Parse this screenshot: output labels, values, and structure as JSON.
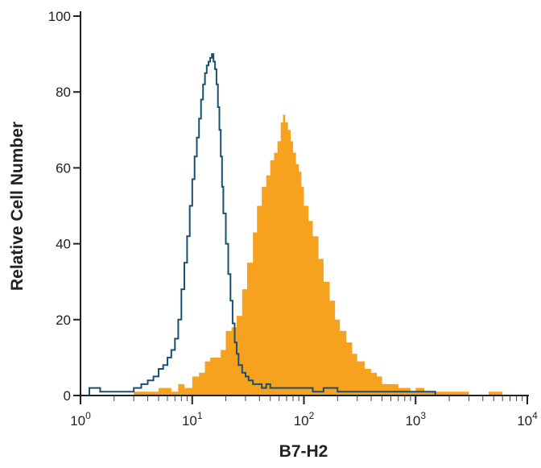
{
  "chart_data": {
    "type": "histogram",
    "title": "",
    "xlabel": "B7-H2",
    "ylabel": "Relative Cell Number",
    "x_scale": "log",
    "xlim": [
      1,
      10000
    ],
    "ylim": [
      0,
      100
    ],
    "x_ticks": [
      {
        "value": 1,
        "base": "10",
        "exp": "0"
      },
      {
        "value": 10,
        "base": "10",
        "exp": "1"
      },
      {
        "value": 100,
        "base": "10",
        "exp": "2"
      },
      {
        "value": 1000,
        "base": "10",
        "exp": "3"
      },
      {
        "value": 10000,
        "base": "10",
        "exp": "4"
      }
    ],
    "y_ticks": [
      0,
      20,
      40,
      60,
      80,
      100
    ],
    "grid": false,
    "legend": "none",
    "series": [
      {
        "style": "filled",
        "color": "#f7a21e",
        "x": [
          1.0,
          2.0,
          3.0,
          3.6,
          4.3,
          5.0,
          5.8,
          6.5,
          7.5,
          8.5,
          10,
          11.5,
          13,
          14.5,
          16,
          18,
          20,
          22.5,
          25,
          28,
          31,
          35,
          38,
          42,
          46,
          50,
          54,
          58,
          62,
          65,
          68,
          72,
          76,
          80,
          85,
          90,
          95,
          100,
          110,
          120,
          135,
          150,
          170,
          190,
          210,
          240,
          270,
          300,
          350,
          400,
          450,
          500,
          600,
          700,
          800,
          900,
          1000,
          1200,
          1500,
          2000,
          3000,
          4500,
          6000,
          10000
        ],
        "y": [
          0,
          0,
          1,
          1,
          1,
          2,
          2,
          1,
          3,
          2,
          5,
          6,
          9,
          10,
          10,
          12,
          17,
          18,
          21,
          28,
          35,
          43,
          50,
          55,
          58,
          62,
          64,
          67,
          72,
          74,
          72,
          70,
          67,
          64,
          61,
          59,
          55,
          50,
          46,
          42,
          36,
          30,
          25,
          20,
          17,
          14,
          11,
          9,
          7,
          6,
          5,
          3,
          3,
          2,
          2,
          1,
          2,
          1,
          1,
          1,
          0,
          1,
          0,
          0
        ]
      },
      {
        "style": "outline",
        "color": "#1b4f72",
        "x": [
          1.0,
          1.2,
          1.5,
          2.0,
          2.5,
          3.0,
          3.5,
          4.0,
          4.5,
          5.0,
          5.5,
          6.0,
          6.5,
          7.0,
          7.5,
          8.0,
          8.5,
          9.0,
          9.5,
          10.0,
          10.5,
          11.0,
          11.5,
          12.0,
          12.5,
          13.0,
          13.5,
          14.0,
          14.5,
          15.0,
          15.5,
          16.0,
          16.5,
          17.0,
          17.5,
          18.0,
          18.5,
          19.0,
          20.0,
          21.0,
          22.0,
          23.0,
          24.0,
          25.0,
          26.0,
          28.0,
          30.0,
          32.0,
          35.0,
          38.0,
          42.0,
          46.0,
          50.0,
          60.0,
          70.0,
          80.0,
          100,
          120,
          150,
          200,
          300,
          400,
          600,
          1000,
          1500,
          2500,
          5000,
          10000
        ],
        "y": [
          0,
          2,
          1,
          1,
          1,
          2,
          3,
          4,
          5,
          7,
          8,
          10,
          12,
          15,
          20,
          28,
          35,
          42,
          50,
          57,
          63,
          68,
          73,
          78,
          82,
          85,
          87,
          88,
          89,
          90,
          88,
          86,
          82,
          76,
          70,
          63,
          55,
          48,
          40,
          32,
          25,
          19,
          14,
          11,
          8,
          6,
          5,
          4,
          3,
          3,
          2,
          3,
          2,
          2,
          2,
          2,
          2,
          1,
          2,
          1,
          1,
          1,
          1,
          1,
          0,
          0,
          0,
          0
        ]
      }
    ]
  }
}
